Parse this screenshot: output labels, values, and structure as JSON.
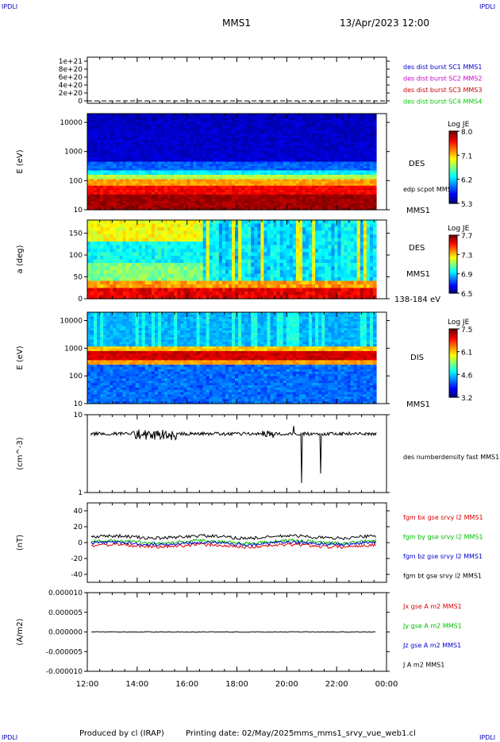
{
  "header": {
    "corner_label": "IPDLI",
    "mission": "MMS1",
    "date_time": "13/Apr/2023 12:00"
  },
  "footer": {
    "producer": "Produced by cl (IRAP)",
    "printing": "Printing date: 02/May/2025",
    "file": "mms_mms1_srvy_vue_web1.cl"
  },
  "colors": {
    "mms1": "#0000cc",
    "mms2": "#cc00cc",
    "mms3": "#cc0000",
    "mms4": "#00cc00",
    "bx": "#dd0000",
    "by": "#00bb00",
    "bz": "#0000cc",
    "bt": "#000000"
  },
  "chart_data": [
    {
      "type": "line",
      "panel": "burst",
      "y_ticks": [
        "1e+21",
        "8e+20",
        "6e+20",
        "4e+20",
        "2e+20",
        "0"
      ],
      "legend": [
        {
          "label": "des dist burst SC1 MMS1",
          "color_key": "mms1"
        },
        {
          "label": "des dist burst SC2 MMS2",
          "color_key": "mms2"
        },
        {
          "label": "des dist burst SC3 MMS3",
          "color_key": "mms3"
        },
        {
          "label": "des dist burst SC4 MMS4",
          "color_key": "mms4"
        }
      ]
    },
    {
      "type": "heatmap",
      "panel": "des_energy",
      "ylabel": "E (eV)",
      "ylim": [
        10,
        20000
      ],
      "yscale": "log",
      "y_ticks": [
        "10000",
        "1000",
        "100",
        "10"
      ],
      "instrument": "DES",
      "sc": "MMS1",
      "overlay_label": "edp scpot MMS1",
      "colorbar": {
        "title": "Log JE",
        "ticks": [
          "8.0",
          "7.1",
          "6.2",
          "5.3"
        ]
      }
    },
    {
      "type": "heatmap",
      "panel": "des_pitch",
      "ylabel": "a (deg)",
      "ylim": [
        0,
        180
      ],
      "y_ticks": [
        "150",
        "100",
        "50",
        "0"
      ],
      "instrument": "DES",
      "sc": "MMS1",
      "energy_range": "138-184 eV",
      "colorbar": {
        "title": "Log JE",
        "ticks": [
          "7.7",
          "7.3",
          "6.9",
          "6.5"
        ]
      }
    },
    {
      "type": "heatmap",
      "panel": "dis_energy",
      "ylabel": "E (eV)",
      "ylim": [
        10,
        20000
      ],
      "yscale": "log",
      "y_ticks": [
        "10000",
        "1000",
        "100",
        "10"
      ],
      "instrument": "DIS",
      "sc": "MMS1",
      "colorbar": {
        "title": "Log JE",
        "ticks": [
          "7.5",
          "6.1",
          "4.6",
          "3.2"
        ]
      }
    },
    {
      "type": "line",
      "panel": "density",
      "ylabel": "(cm^-3)",
      "ylim": [
        1,
        10
      ],
      "yscale": "log",
      "y_ticks": [
        "10",
        "1"
      ],
      "legend": [
        {
          "label": "des numberdensity fast MMS1",
          "color_key": "bt"
        }
      ]
    },
    {
      "type": "line",
      "panel": "field",
      "ylabel": "(nT)",
      "ylim": [
        -50,
        50
      ],
      "y_ticks": [
        "40",
        "20",
        "0",
        "-20",
        "-40"
      ],
      "legend": [
        {
          "label": "fgm bx gse srvy l2 MMS1",
          "color_key": "bx"
        },
        {
          "label": "fgm by gse srvy l2 MMS1",
          "color_key": "by"
        },
        {
          "label": "fgm bz gse srvy l2 MMS1",
          "color_key": "bz"
        },
        {
          "label": "fgm bt gse srvy l2 MMS1",
          "color_key": "bt"
        }
      ],
      "series_levels": {
        "bx": -4,
        "by": 1,
        "bz": -1,
        "bt": 7
      }
    },
    {
      "type": "line",
      "panel": "current",
      "ylabel": "(A/m2)",
      "ylim": [
        -1e-05,
        1e-05
      ],
      "y_ticks": [
        "0.000010",
        "0.000005",
        "0.000000",
        "-0.000005",
        "-0.000010"
      ],
      "legend": [
        {
          "label": "Jx gse A m2 MMS1",
          "color_key": "bx"
        },
        {
          "label": "Jy gse A m2 MMS1",
          "color_key": "by"
        },
        {
          "label": "Jz gse A m2 MMS1",
          "color_key": "bz"
        },
        {
          "label": "J A m2 MMS1",
          "color_key": "bt"
        }
      ]
    }
  ],
  "x_axis": {
    "ticks": [
      "12:00",
      "14:00",
      "16:00",
      "18:00",
      "20:00",
      "22:00",
      "00:00"
    ]
  }
}
